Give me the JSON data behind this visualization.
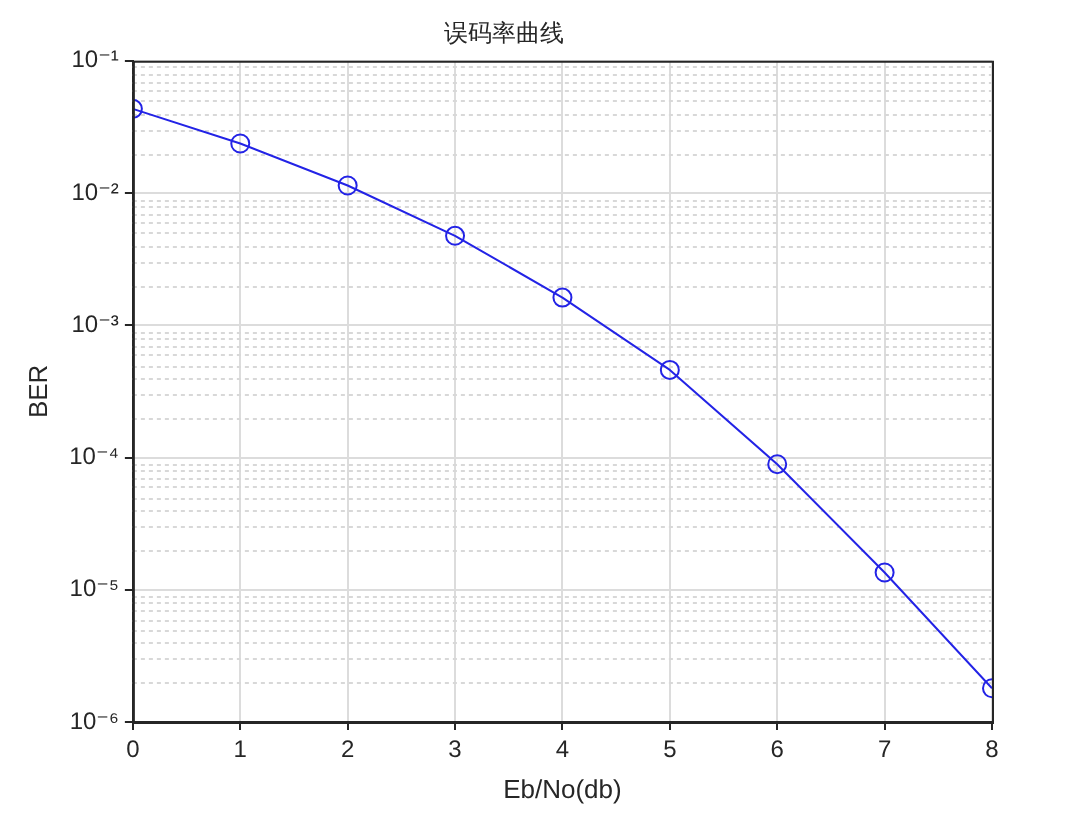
{
  "chart_data": {
    "type": "line",
    "title": "误码率曲线",
    "xlabel": "Eb/No(db)",
    "ylabel": "BER",
    "x": [
      0,
      1,
      2,
      3,
      4,
      5,
      6,
      7,
      8
    ],
    "series": [
      {
        "color": "#2323e6",
        "values": [
          0.0433,
          0.0237,
          0.0114,
          0.00475,
          0.00162,
          0.00046,
          8.9e-05,
          1.35e-05,
          1.8e-06
        ]
      }
    ],
    "xlim": [
      0,
      8
    ],
    "xticks": [
      0,
      1,
      2,
      3,
      4,
      5,
      6,
      7,
      8
    ],
    "ylim": [
      1e-06,
      0.1
    ],
    "yticks": [
      {
        "value": 1e-06,
        "label": "10⁻⁶"
      },
      {
        "value": 1e-05,
        "label": "10⁻⁵"
      },
      {
        "value": 0.0001,
        "label": "10⁻⁴"
      },
      {
        "value": 0.001,
        "label": "10⁻³"
      },
      {
        "value": 0.01,
        "label": "10⁻²"
      },
      {
        "value": 0.1,
        "label": "10⁻¹"
      }
    ],
    "log": "y",
    "grid": true,
    "marker": "circle",
    "line_style": "solid"
  }
}
